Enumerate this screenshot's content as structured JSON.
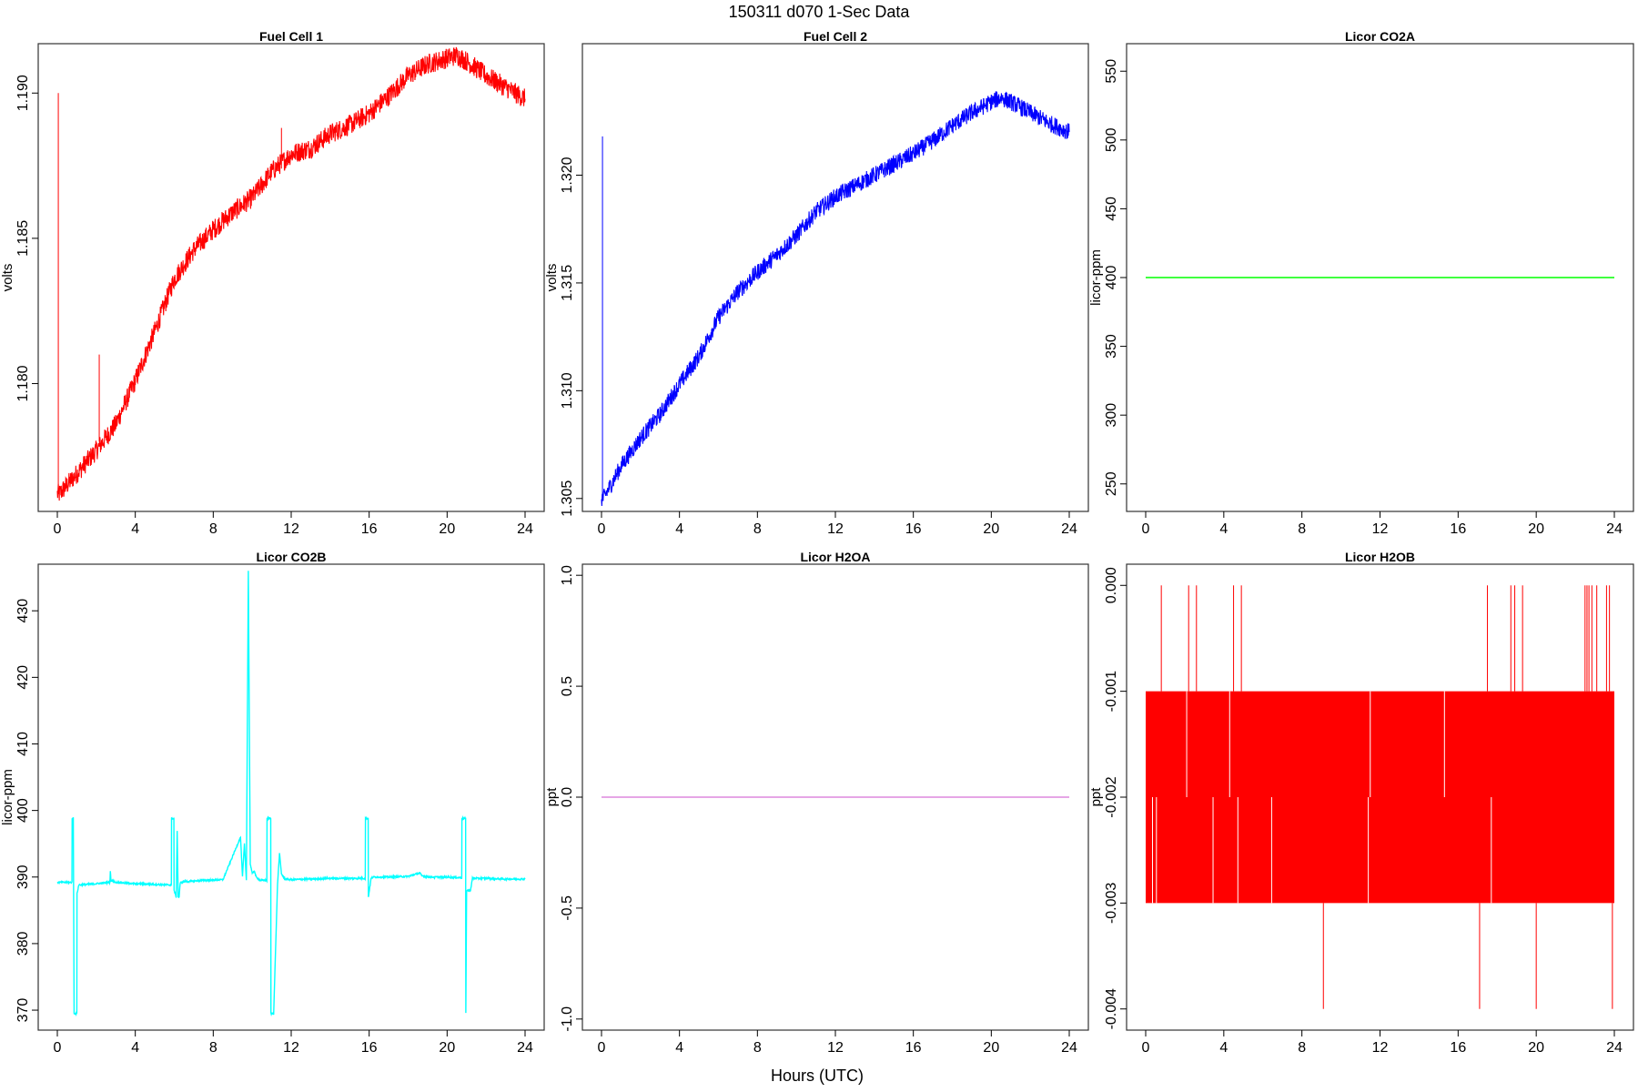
{
  "title": "150311    d070    1-Sec Data",
  "xlabel": "Hours (UTC)",
  "chart_data": [
    {
      "type": "line",
      "title": "Fuel Cell 1",
      "ylabel": "volts",
      "color": "#ff0000",
      "xlim": [
        0,
        24
      ],
      "ylim": [
        1.1756,
        1.1917
      ],
      "xticks": [
        "0",
        "4",
        "8",
        "12",
        "16",
        "20",
        "24"
      ],
      "yticks": [
        "1.180",
        "1.185",
        "1.190"
      ],
      "spikes": [
        {
          "x": 0.05,
          "y_from": 1.1762,
          "y_to": 1.19
        },
        {
          "x": 2.15,
          "y_from": 1.178,
          "y_to": 1.181
        },
        {
          "x": 11.5,
          "y_from": 1.1874,
          "y_to": 1.1888
        }
      ],
      "series": [
        {
          "x": [
            0,
            0.1,
            1,
            2,
            3,
            4,
            5,
            6,
            7,
            8,
            9,
            10,
            11,
            12,
            13,
            14,
            15,
            16,
            17,
            18,
            19,
            20,
            20.5,
            21,
            22,
            23,
            24
          ],
          "y": [
            1.1762,
            1.1762,
            1.1769,
            1.1777,
            1.1786,
            1.1801,
            1.1818,
            1.1836,
            1.1846,
            1.1853,
            1.1859,
            1.1864,
            1.1873,
            1.1879,
            1.1881,
            1.1886,
            1.1889,
            1.1893,
            1.1899,
            1.1906,
            1.191,
            1.1912,
            1.1913,
            1.1911,
            1.1906,
            1.1902,
            1.1898
          ]
        }
      ],
      "noise": 0.00035
    },
    {
      "type": "line",
      "title": "Fuel Cell 2",
      "ylabel": "volts",
      "color": "#0000ff",
      "xlim": [
        0,
        24
      ],
      "ylim": [
        1.3044,
        1.3261
      ],
      "xticks": [
        "0",
        "4",
        "8",
        "12",
        "16",
        "20",
        "24"
      ],
      "yticks": [
        "1.305",
        "1.310",
        "1.315",
        "1.320"
      ],
      "spikes": [
        {
          "x": 0.05,
          "y_from": 1.305,
          "y_to": 1.3218
        }
      ],
      "series": [
        {
          "x": [
            0,
            0.1,
            1,
            2,
            3,
            4,
            5,
            6,
            7,
            8,
            9,
            10,
            11,
            12,
            13,
            14,
            15,
            16,
            17,
            18,
            19,
            20,
            20.5,
            21,
            22,
            23,
            24
          ],
          "y": [
            1.305,
            1.305,
            1.3065,
            1.3078,
            1.3089,
            1.3103,
            1.3116,
            1.3134,
            1.3146,
            1.3155,
            1.3163,
            1.3172,
            1.3183,
            1.319,
            1.3195,
            1.32,
            1.3205,
            1.321,
            1.3216,
            1.3223,
            1.3229,
            1.3234,
            1.3236,
            1.3234,
            1.3229,
            1.3224,
            1.322
          ]
        }
      ],
      "noise": 0.0004
    },
    {
      "type": "line",
      "title": "Licor CO2A",
      "ylabel": "licor-ppm",
      "color": "#00ff00",
      "xlim": [
        0,
        24
      ],
      "ylim": [
        230,
        570
      ],
      "xticks": [
        "0",
        "4",
        "8",
        "12",
        "16",
        "20",
        "24"
      ],
      "yticks": [
        "250",
        "300",
        "350",
        "400",
        "450",
        "500",
        "550"
      ],
      "series": [
        {
          "x": [
            0,
            24
          ],
          "y": [
            400,
            400
          ]
        }
      ],
      "noise": 0
    },
    {
      "type": "line",
      "title": "Licor CO2B",
      "ylabel": "licor-ppm",
      "color": "#00ffff",
      "xlim": [
        0,
        24
      ],
      "ylim": [
        367,
        437
      ],
      "xticks": [
        "0",
        "4",
        "8",
        "12",
        "16",
        "20",
        "24"
      ],
      "yticks": [
        "370",
        "380",
        "390",
        "400",
        "410",
        "420",
        "430"
      ],
      "series": [
        {
          "x": [
            0,
            0.75,
            0.76,
            0.82,
            0.86,
            0.87,
            1.0,
            1.01,
            1.1,
            2.0,
            2.7,
            2.72,
            2.75,
            3.0,
            4.0,
            5.0,
            5.85,
            5.86,
            5.98,
            5.99,
            6.1,
            6.15,
            6.2,
            6.25,
            6.3,
            6.35,
            6.5,
            7.5,
            8.5,
            9.4,
            9.5,
            9.6,
            9.7,
            9.8,
            9.9,
            10.0,
            10.1,
            10.2,
            10.4,
            10.75,
            10.76,
            10.95,
            10.96,
            11.1,
            11.3,
            11.4,
            11.5,
            11.6,
            11.7,
            12.0,
            14.0,
            15.8,
            15.81,
            15.95,
            15.96,
            16.1,
            16.2,
            17.0,
            18.0,
            18.6,
            18.7,
            19.0,
            20.0,
            20.75,
            20.76,
            20.95,
            20.96,
            21.0,
            21.2,
            21.3,
            22.0,
            23.0,
            24.0
          ],
          "y": [
            389.2,
            389.2,
            398.8,
            398.8,
            369.5,
            369.5,
            369.5,
            387.5,
            388.8,
            389.0,
            389.2,
            391.0,
            389.5,
            389.2,
            389.0,
            388.9,
            388.8,
            398.8,
            398.8,
            388.0,
            387.0,
            397.0,
            387.0,
            387.0,
            389.0,
            389.2,
            389.3,
            389.5,
            389.6,
            396.0,
            390.0,
            395.0,
            389.5,
            436.0,
            392.0,
            390.5,
            391.0,
            390.0,
            389.5,
            389.5,
            398.8,
            398.8,
            369.5,
            369.5,
            389.0,
            393.5,
            390.5,
            390.0,
            389.7,
            389.6,
            389.8,
            389.8,
            398.8,
            398.8,
            387.0,
            389.8,
            390.0,
            390.0,
            390.1,
            390.6,
            390.2,
            390.0,
            390.0,
            389.9,
            398.8,
            398.8,
            369.5,
            388.0,
            388.0,
            389.8,
            389.8,
            389.7,
            389.7
          ]
        }
      ],
      "noise": 0.12
    },
    {
      "type": "line",
      "title": "Licor H2OA",
      "ylabel": "ppt",
      "color": "#dd88dd",
      "xlim": [
        0,
        24
      ],
      "ylim": [
        -1.05,
        1.05
      ],
      "xticks": [
        "0",
        "4",
        "8",
        "12",
        "16",
        "20",
        "24"
      ],
      "yticks": [
        "-1.0",
        "-0.5",
        "0.0",
        "0.5",
        "1.0"
      ],
      "series": [
        {
          "x": [
            0,
            24
          ],
          "y": [
            0,
            0
          ]
        }
      ],
      "noise": 0
    },
    {
      "type": "line",
      "title": "Licor H2OB",
      "ylabel": "ppt",
      "color": "#ff0000",
      "xlim": [
        0,
        24
      ],
      "ylim": [
        -0.0042,
        0.0002
      ],
      "xticks": [
        "0",
        "4",
        "8",
        "12",
        "16",
        "20",
        "24"
      ],
      "yticks": [
        "-0.004",
        "-0.003",
        "-0.002",
        "-0.001",
        "0.000"
      ],
      "band": {
        "x_from": 0,
        "x_to": 24,
        "y_from": -0.003,
        "y_to": -0.001
      },
      "spikes": [
        {
          "x": 0.8,
          "y_from": -0.001,
          "y_to": 0.0
        },
        {
          "x": 2.2,
          "y_from": -0.001,
          "y_to": 0.0
        },
        {
          "x": 2.6,
          "y_from": -0.001,
          "y_to": 0.0
        },
        {
          "x": 4.5,
          "y_from": -0.001,
          "y_to": 0.0
        },
        {
          "x": 4.9,
          "y_from": -0.001,
          "y_to": 0.0
        },
        {
          "x": 17.5,
          "y_from": -0.001,
          "y_to": 0.0
        },
        {
          "x": 18.7,
          "y_from": -0.001,
          "y_to": 0.0
        },
        {
          "x": 18.9,
          "y_from": -0.001,
          "y_to": 0.0
        },
        {
          "x": 19.3,
          "y_from": -0.001,
          "y_to": 0.0
        },
        {
          "x": 22.5,
          "y_from": -0.001,
          "y_to": 0.0
        },
        {
          "x": 22.6,
          "y_from": -0.001,
          "y_to": 0.0
        },
        {
          "x": 22.7,
          "y_from": -0.001,
          "y_to": 0.0
        },
        {
          "x": 22.85,
          "y_from": -0.001,
          "y_to": 0.0
        },
        {
          "x": 23.1,
          "y_from": -0.001,
          "y_to": 0.0
        },
        {
          "x": 23.6,
          "y_from": -0.001,
          "y_to": 0.0
        },
        {
          "x": 23.75,
          "y_from": -0.001,
          "y_to": 0.0
        },
        {
          "x": 9.1,
          "y_from": -0.003,
          "y_to": -0.004
        },
        {
          "x": 17.1,
          "y_from": -0.003,
          "y_to": -0.004
        },
        {
          "x": 20.0,
          "y_from": -0.003,
          "y_to": -0.004
        },
        {
          "x": 23.9,
          "y_from": -0.003,
          "y_to": -0.004
        }
      ],
      "series": [],
      "noise": 0
    }
  ]
}
